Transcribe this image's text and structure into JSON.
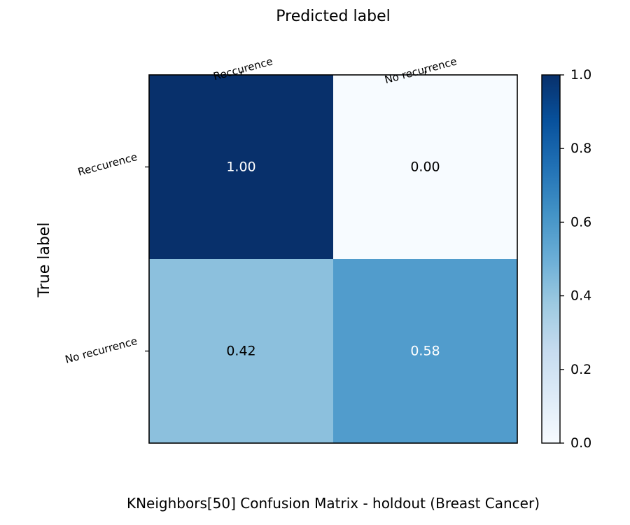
{
  "chart_data": {
    "type": "heatmap",
    "title": "",
    "caption": "KNeighbors[50] Confusion Matrix - holdout (Breast Cancer)",
    "xlabel": "Predicted label",
    "ylabel": "True label",
    "x_categories": [
      "Reccurence",
      "No recurrence"
    ],
    "y_categories": [
      "Reccurence",
      "No recurrence"
    ],
    "values": [
      [
        1.0,
        0.0
      ],
      [
        0.42,
        0.58
      ]
    ],
    "value_format": "2 decimals",
    "colormap": "Blues",
    "clim": [
      0.0,
      1.0
    ],
    "colorbar_ticks": [
      "0.0",
      "0.2",
      "0.4",
      "0.6",
      "0.8",
      "1.0"
    ],
    "x_axis_position": "top",
    "colorbar_position": "right",
    "grid": false
  }
}
